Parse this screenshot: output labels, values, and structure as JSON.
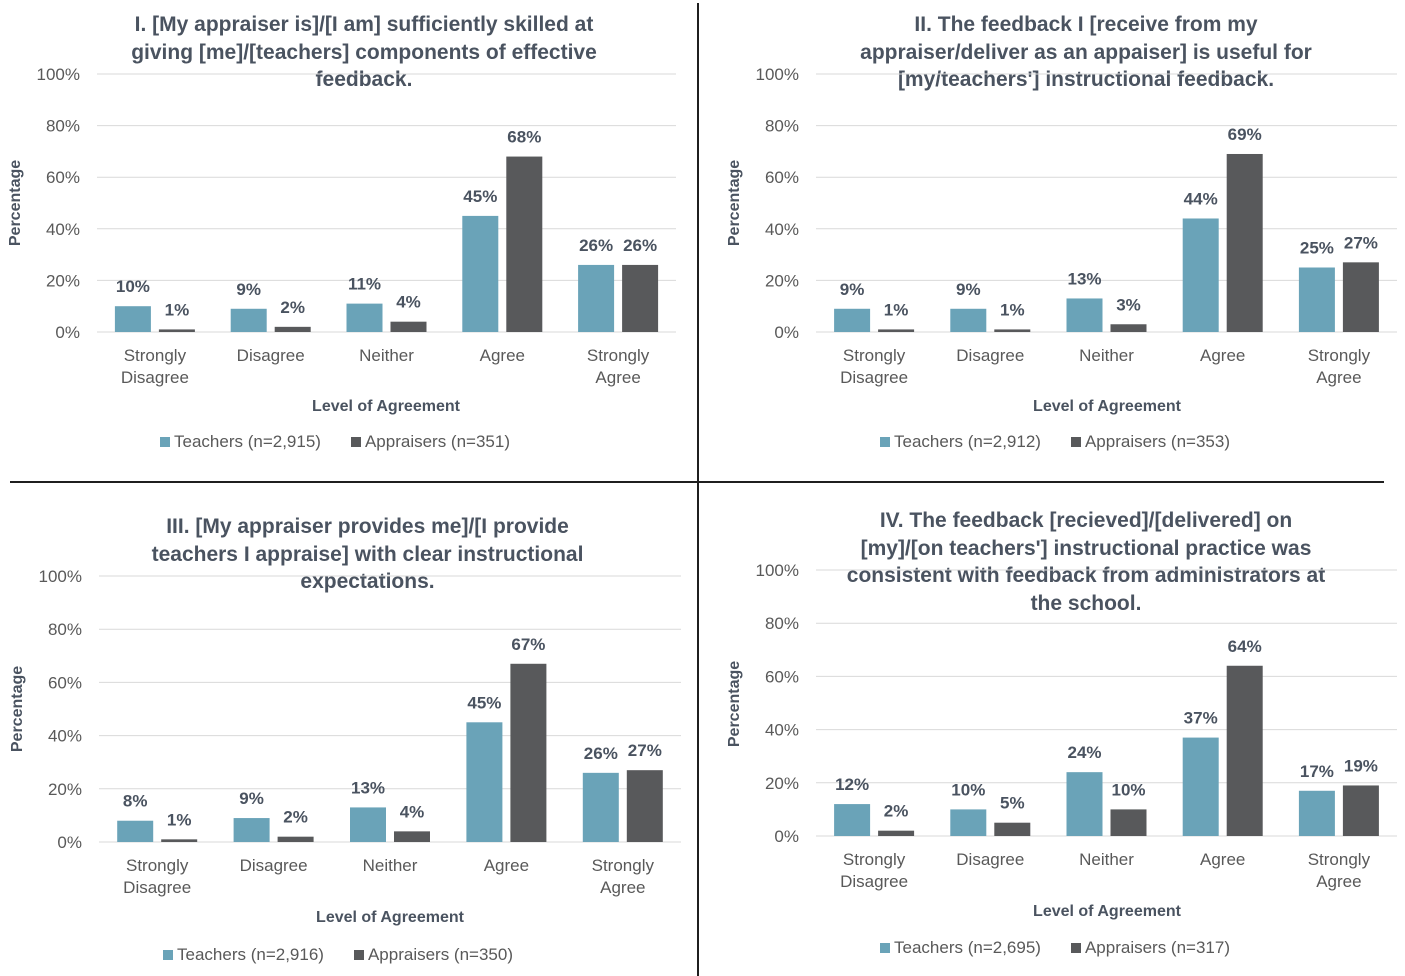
{
  "colors": {
    "teachers": "#6aa3b8",
    "appraisers": "#58595b",
    "grid": "#d9d9d9",
    "text": "#595959",
    "label": "#4a5360"
  },
  "chart_data": [
    {
      "type": "bar",
      "title_lines": [
        "I. [My appraiser is]/[I am] sufficiently skilled at",
        "giving [me]/[teachers] components of effective",
        "feedback."
      ],
      "xlabel": "Level of Agreement",
      "ylabel": "Percentage",
      "ylim": [
        0,
        100
      ],
      "yticks": [
        "0%",
        "20%",
        "40%",
        "60%",
        "80%",
        "100%"
      ],
      "grid": true,
      "legend_position": "bottom",
      "categories": [
        [
          "Strongly",
          "Disagree"
        ],
        [
          "Disagree"
        ],
        [
          "Neither"
        ],
        [
          "Agree"
        ],
        [
          "Strongly",
          "Agree"
        ]
      ],
      "series": [
        {
          "name": "Teachers (n=2,915)",
          "values": [
            10,
            9,
            11,
            45,
            26
          ],
          "labels": [
            "10%",
            "9%",
            "11%",
            "45%",
            "26%"
          ]
        },
        {
          "name": "Appraisers (n=351)",
          "values": [
            1,
            2,
            4,
            68,
            26
          ],
          "labels": [
            "1%",
            "2%",
            "4%",
            "68%",
            "26%"
          ]
        }
      ]
    },
    {
      "type": "bar",
      "title_lines": [
        "II. The feedback I [receive from my",
        "appraiser/deliver as an appaiser] is useful for",
        "[my/teachers'] instructional feedback."
      ],
      "xlabel": "Level of Agreement",
      "ylabel": "Percentage",
      "ylim": [
        0,
        100
      ],
      "yticks": [
        "0%",
        "20%",
        "40%",
        "60%",
        "80%",
        "100%"
      ],
      "grid": true,
      "legend_position": "bottom",
      "categories": [
        [
          "Strongly",
          "Disagree"
        ],
        [
          "Disagree"
        ],
        [
          "Neither"
        ],
        [
          "Agree"
        ],
        [
          "Strongly",
          "Agree"
        ]
      ],
      "series": [
        {
          "name": "Teachers (n=2,912)",
          "values": [
            9,
            9,
            13,
            44,
            25
          ],
          "labels": [
            "9%",
            "9%",
            "13%",
            "44%",
            "25%"
          ]
        },
        {
          "name": "Appraisers (n=353)",
          "values": [
            1,
            1,
            3,
            69,
            27
          ],
          "labels": [
            "1%",
            "1%",
            "3%",
            "69%",
            "27%"
          ]
        }
      ]
    },
    {
      "type": "bar",
      "title_lines": [
        "III. [My appraiser provides me]/[I provide",
        "teachers I appraise] with clear instructional",
        "expectations."
      ],
      "xlabel": "Level of Agreement",
      "ylabel": "Percentage",
      "ylim": [
        0,
        100
      ],
      "yticks": [
        "0%",
        "20%",
        "40%",
        "60%",
        "80%",
        "100%"
      ],
      "grid": true,
      "legend_position": "bottom",
      "categories": [
        [
          "Strongly",
          "Disagree"
        ],
        [
          "Disagree"
        ],
        [
          "Neither"
        ],
        [
          "Agree"
        ],
        [
          "Strongly",
          "Agree"
        ]
      ],
      "series": [
        {
          "name": "Teachers (n=2,916)",
          "values": [
            8,
            9,
            13,
            45,
            26
          ],
          "labels": [
            "8%",
            "9%",
            "13%",
            "45%",
            "26%"
          ]
        },
        {
          "name": "Appraisers (n=350)",
          "values": [
            1,
            2,
            4,
            67,
            27
          ],
          "labels": [
            "1%",
            "2%",
            "4%",
            "67%",
            "27%"
          ]
        }
      ]
    },
    {
      "type": "bar",
      "title_lines": [
        "IV. The feedback [recieved]/[delivered] on",
        "[my]/[on teachers'] instructional practice was",
        "consistent with feedback from administrators at",
        "the school."
      ],
      "xlabel": "Level of Agreement",
      "ylabel": "Percentage",
      "ylim": [
        0,
        100
      ],
      "yticks": [
        "0%",
        "20%",
        "40%",
        "60%",
        "80%",
        "100%"
      ],
      "grid": true,
      "legend_position": "bottom",
      "categories": [
        [
          "Strongly",
          "Disagree"
        ],
        [
          "Disagree"
        ],
        [
          "Neither"
        ],
        [
          "Agree"
        ],
        [
          "Strongly",
          "Agree"
        ]
      ],
      "series": [
        {
          "name": "Teachers (n=2,695)",
          "values": [
            12,
            10,
            24,
            37,
            17
          ],
          "labels": [
            "12%",
            "10%",
            "24%",
            "37%",
            "17%"
          ]
        },
        {
          "name": "Appraisers (n=317)",
          "values": [
            2,
            5,
            10,
            64,
            19
          ],
          "labels": [
            "2%",
            "5%",
            "10%",
            "64%",
            "19%"
          ]
        }
      ]
    }
  ]
}
